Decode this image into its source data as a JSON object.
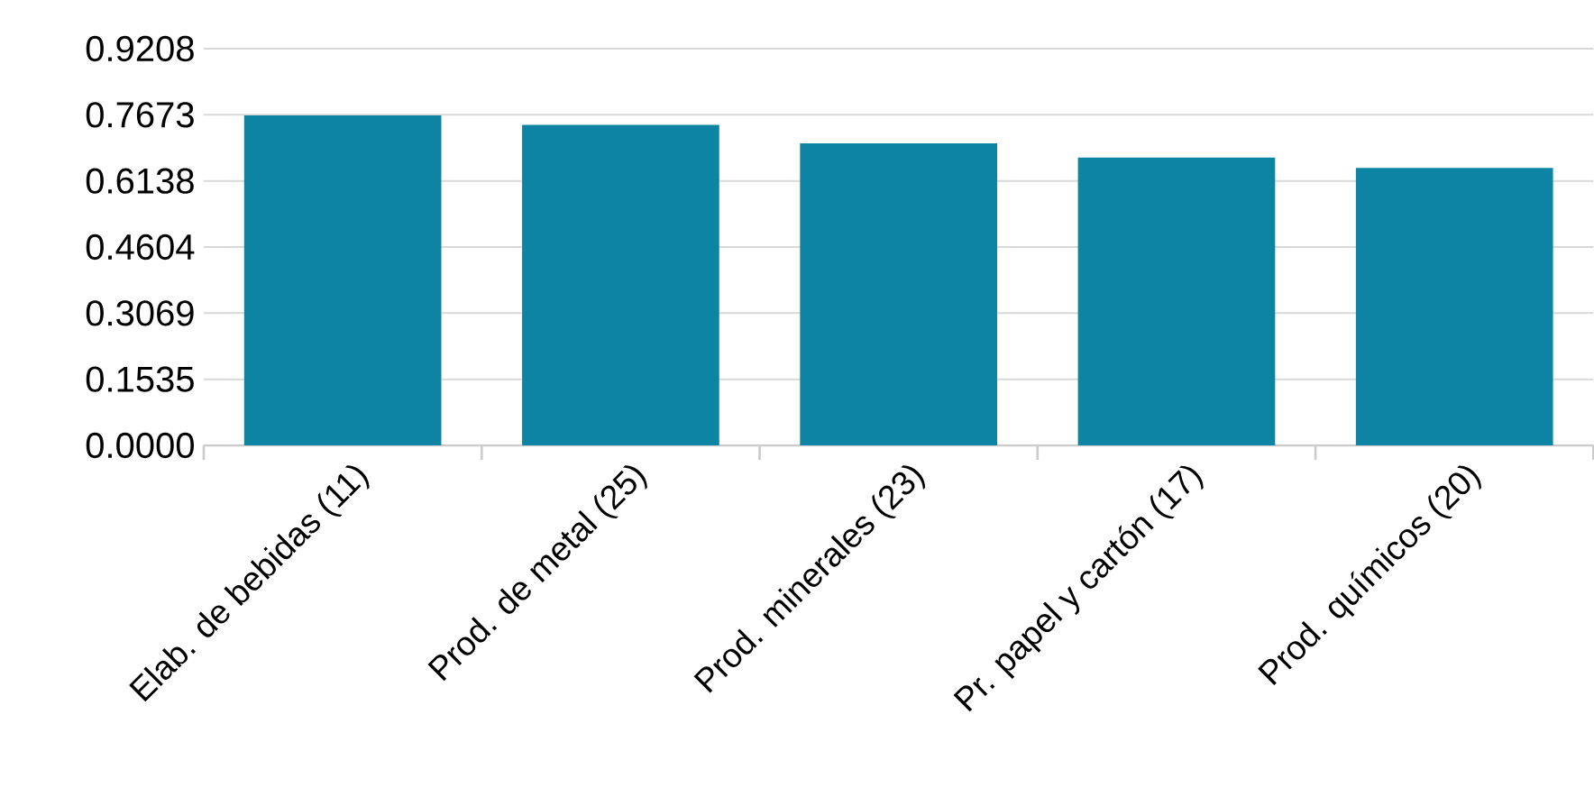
{
  "chart_data": {
    "type": "bar",
    "categories": [
      "Elab. de bebidas (11)",
      "Prod. de metal (25)",
      "Prod. minerales (23)",
      "Pr. papel y cartón (17)",
      "Prod. químicos (20)"
    ],
    "values": [
      0.766,
      0.744,
      0.701,
      0.668,
      0.644
    ],
    "color": "#0e84a5",
    "ylim": [
      0,
      0.9208
    ],
    "yticks": [
      {
        "value": 0,
        "label": "0.0000"
      },
      0.1535,
      0.3069,
      0.4604,
      0.6138,
      0.7673,
      0.9208
    ],
    "grid": "y"
  }
}
